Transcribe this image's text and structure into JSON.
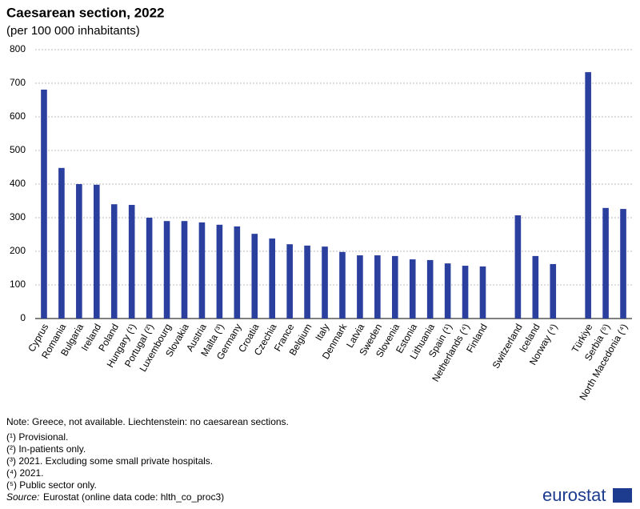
{
  "chart_data": {
    "type": "bar",
    "title": "Caesarean section, 2022",
    "subtitle": "(per 100 000 inhabitants)",
    "categories": [
      "Cyprus",
      "Romania",
      "Bulgaria",
      "Ireland",
      "Poland",
      "Hungary (¹)",
      "Portugal (²)",
      "Luxembourg",
      "Slovakia",
      "Austria",
      "Malta (³)",
      "Germany",
      "Croatia",
      "Czechia",
      "France",
      "Belgium",
      "Italy",
      "Denmark",
      "Latvia",
      "Sweden",
      "Slovenia",
      "Estonia",
      "Lithuania",
      "Spain (¹)",
      "Netherlands (⁴)",
      "Finland",
      null,
      "Switzerland",
      "Iceland",
      "Norway (⁴)",
      null,
      "Türkiye",
      "Serbia (⁵)",
      "North Macedonia (⁴)"
    ],
    "values": [
      681,
      448,
      400,
      398,
      340,
      338,
      300,
      290,
      290,
      286,
      279,
      274,
      252,
      238,
      221,
      217,
      214,
      198,
      188,
      188,
      186,
      176,
      174,
      164,
      157,
      155,
      null,
      307,
      186,
      162,
      null,
      733,
      329,
      326
    ],
    "color": "#2a3f9e",
    "ylim": [
      0,
      800
    ],
    "yticks": [
      0,
      100,
      200,
      300,
      400,
      500,
      600,
      700,
      800
    ],
    "grid": true
  },
  "notes": [
    "Note: Greece, not available. Liechtenstein: no caesarean sections.",
    "(¹) Provisional.",
    "(²) In-patients  only.",
    "(³) 2021. Excluding some small private hospitals.",
    "(⁴) 2021.",
    "(⁵) Public sector only."
  ],
  "source": {
    "label": "Source:",
    "text": "Eurostat (online data code: hlth_co_proc3)"
  },
  "logo": "eurostat"
}
